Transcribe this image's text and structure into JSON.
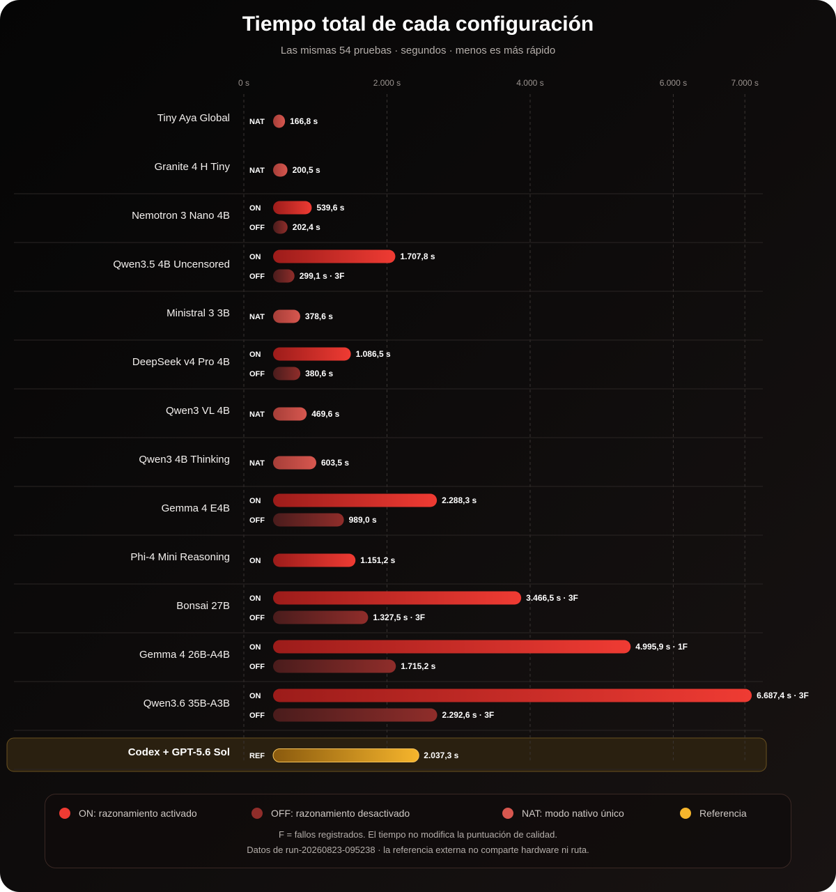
{
  "title": "Tiempo total de cada configuración",
  "subtitle": "Las mismas 54 pruebas · segundos · menos es más rápido",
  "colors": {
    "on": "#ef3b33",
    "off": "#8f2d2a",
    "nat": "#d7574f",
    "ref": "#f6b52c",
    "grid": "#3a3533",
    "separator": "#2a2524"
  },
  "chart_data": {
    "type": "bar",
    "orientation": "horizontal",
    "xlim": [
      0,
      7000
    ],
    "xticks": [
      {
        "value": 0,
        "label": "0 s"
      },
      {
        "value": 2000,
        "label": "2.000 s"
      },
      {
        "value": 4000,
        "label": "4.000 s"
      },
      {
        "value": 6000,
        "label": "6.000 s"
      },
      {
        "value": 7000,
        "label": "7.000 s"
      }
    ],
    "grid": true,
    "categories": [
      {
        "name": "Tiny Aya Global",
        "bars": [
          {
            "mode": "NAT",
            "value": 166.8,
            "label": "166,8 s"
          }
        ]
      },
      {
        "name": "Granite 4 H Tiny",
        "bars": [
          {
            "mode": "NAT",
            "value": 200.5,
            "label": "200,5 s"
          }
        ]
      },
      {
        "name": "Nemotron 3 Nano 4B",
        "bars": [
          {
            "mode": "ON",
            "value": 539.6,
            "label": "539,6 s"
          },
          {
            "mode": "OFF",
            "value": 202.4,
            "label": "202,4 s"
          }
        ]
      },
      {
        "name": "Qwen3.5 4B Uncensored",
        "bars": [
          {
            "mode": "ON",
            "value": 1707.8,
            "label": "1.707,8 s"
          },
          {
            "mode": "OFF",
            "value": 299.1,
            "label": "299,1 s · 3F"
          }
        ]
      },
      {
        "name": "Ministral 3 3B",
        "bars": [
          {
            "mode": "NAT",
            "value": 378.6,
            "label": "378,6 s"
          }
        ]
      },
      {
        "name": "DeepSeek v4 Pro 4B",
        "bars": [
          {
            "mode": "ON",
            "value": 1086.5,
            "label": "1.086,5 s"
          },
          {
            "mode": "OFF",
            "value": 380.6,
            "label": "380,6 s"
          }
        ]
      },
      {
        "name": "Qwen3 VL 4B",
        "bars": [
          {
            "mode": "NAT",
            "value": 469.6,
            "label": "469,6 s"
          }
        ]
      },
      {
        "name": "Qwen3 4B Thinking",
        "bars": [
          {
            "mode": "NAT",
            "value": 603.5,
            "label": "603,5 s"
          }
        ]
      },
      {
        "name": "Gemma 4 E4B",
        "bars": [
          {
            "mode": "ON",
            "value": 2288.3,
            "label": "2.288,3 s"
          },
          {
            "mode": "OFF",
            "value": 989.0,
            "label": "989,0 s"
          }
        ]
      },
      {
        "name": "Phi-4 Mini Reasoning",
        "bars": [
          {
            "mode": "ON",
            "value": 1151.2,
            "label": "1.151,2 s"
          }
        ]
      },
      {
        "name": "Bonsai 27B",
        "bars": [
          {
            "mode": "ON",
            "value": 3466.5,
            "label": "3.466,5 s · 3F"
          },
          {
            "mode": "OFF",
            "value": 1327.5,
            "label": "1.327,5 s · 3F"
          }
        ]
      },
      {
        "name": "Gemma 4 26B-A4B",
        "bars": [
          {
            "mode": "ON",
            "value": 4995.9,
            "label": "4.995,9 s · 1F"
          },
          {
            "mode": "OFF",
            "value": 1715.2,
            "label": "1.715,2 s"
          }
        ]
      },
      {
        "name": "Qwen3.6 35B-A3B",
        "bars": [
          {
            "mode": "ON",
            "value": 6687.4,
            "label": "6.687,4 s · 3F"
          },
          {
            "mode": "OFF",
            "value": 2292.6,
            "label": "2.292,6 s · 3F"
          }
        ]
      },
      {
        "name": "Codex + GPT-5.6 Sol",
        "highlight": true,
        "bars": [
          {
            "mode": "REF",
            "value": 2037.3,
            "label": "2.037,3 s"
          }
        ]
      }
    ]
  },
  "legend": {
    "items": [
      {
        "key": "on",
        "label": "ON: razonamiento activado"
      },
      {
        "key": "off",
        "label": "OFF: razonamiento desactivado"
      },
      {
        "key": "nat",
        "label": "NAT: modo nativo único"
      },
      {
        "key": "ref",
        "label": "Referencia"
      }
    ],
    "note1": "F = fallos registrados. El tiempo no modifica la puntuación de calidad.",
    "note2": "Datos de run-20260823-095238 · la referencia externa no comparte hardware ni ruta."
  }
}
